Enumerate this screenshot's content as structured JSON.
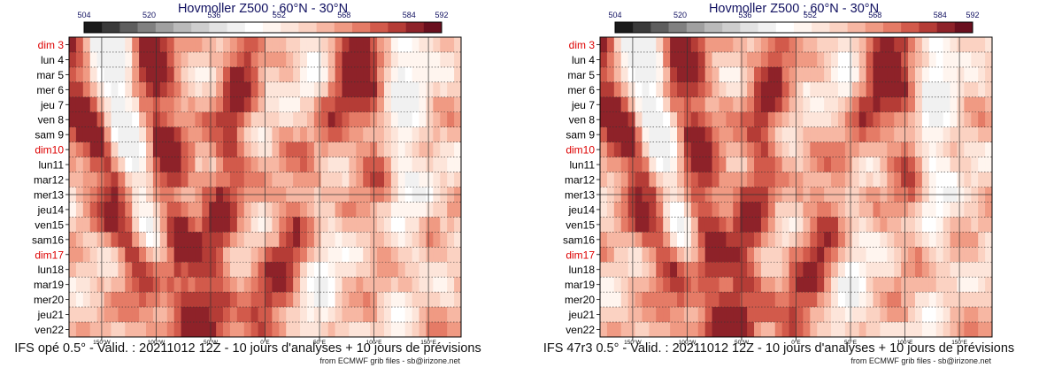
{
  "chart_data": [
    {
      "type": "heatmap",
      "title": "Hovmoller Z500 ; 60°N - 30°N",
      "caption": "IFS opé 0.5° - Valid. : 20211012 12Z - 10 jours d'analyses + 10 jours de prévisions",
      "credit": "from ECMWF grib files - sb@irizone.net",
      "colorbar": {
        "ticks": [
          504,
          520,
          536,
          552,
          568,
          584,
          592
        ],
        "colors": [
          "#1a1a1a",
          "#3a3a3a",
          "#5e5e5e",
          "#808080",
          "#a0a0a0",
          "#bababa",
          "#cecece",
          "#e2e2e2",
          "#f1f1f1",
          "#ffffff",
          "#fff5ef",
          "#fde5da",
          "#fbd2c2",
          "#f7b7a3",
          "#f09a83",
          "#e57b66",
          "#d25a4b",
          "#b53c36",
          "#8e2229",
          "#6a0f1e"
        ]
      },
      "x_labels": [
        "150°W",
        "100°W",
        "50°W",
        "0°E",
        "50°E",
        "100°E",
        "150°E"
      ],
      "x_values": [
        -150,
        -100,
        -50,
        0,
        50,
        100,
        150
      ],
      "xlim": [
        -180,
        180
      ],
      "y_labels": [
        {
          "text": "dim 3",
          "weekend": true
        },
        {
          "text": "lun 4",
          "weekend": false
        },
        {
          "text": "mar 5",
          "weekend": false
        },
        {
          "text": "mer 6",
          "weekend": false
        },
        {
          "text": "jeu 7",
          "weekend": false
        },
        {
          "text": "ven 8",
          "weekend": false
        },
        {
          "text": "sam 9",
          "weekend": false
        },
        {
          "text": "dim10",
          "weekend": true
        },
        {
          "text": "lun11",
          "weekend": false
        },
        {
          "text": "mar12",
          "weekend": false
        },
        {
          "text": "mer13",
          "weekend": false
        },
        {
          "text": "jeu14",
          "weekend": false
        },
        {
          "text": "ven15",
          "weekend": false
        },
        {
          "text": "sam16",
          "weekend": false
        },
        {
          "text": "dim17",
          "weekend": true
        },
        {
          "text": "lun18",
          "weekend": false
        },
        {
          "text": "mar19",
          "weekend": false
        },
        {
          "text": "mer20",
          "weekend": false
        },
        {
          "text": "jeu21",
          "weekend": false
        },
        {
          "text": "ven22",
          "weekend": false
        }
      ],
      "ridges": [
        [
          -140,
          -100,
          0.8
        ],
        [
          -90,
          -30,
          0.75
        ],
        [
          -30,
          35,
          0.9
        ],
        [
          40,
          80,
          0.6
        ],
        [
          110,
          -40,
          0.5
        ]
      ],
      "troughs": [
        [
          -115,
          -60,
          0.9
        ],
        [
          -20,
          40,
          0.5
        ],
        [
          50,
          0,
          0.35
        ],
        [
          125,
          0,
          0.6
        ]
      ],
      "base": 0.4,
      "seed": 3
    },
    {
      "type": "heatmap",
      "title": "Hovmoller Z500 ; 60°N - 30°N",
      "caption": "IFS 47r3 0.5° - Valid. : 20211012 12Z - 10 jours d'analyses + 10 jours de prévisions",
      "credit": "from ECMWF grib files - sb@irizone.net",
      "colorbar": {
        "ticks": [
          504,
          520,
          536,
          552,
          568,
          584,
          592
        ],
        "colors": [
          "#1a1a1a",
          "#3a3a3a",
          "#5e5e5e",
          "#808080",
          "#a0a0a0",
          "#bababa",
          "#cecece",
          "#e2e2e2",
          "#f1f1f1",
          "#ffffff",
          "#fff5ef",
          "#fde5da",
          "#fbd2c2",
          "#f7b7a3",
          "#f09a83",
          "#e57b66",
          "#d25a4b",
          "#b53c36",
          "#8e2229",
          "#6a0f1e"
        ]
      },
      "x_labels": [
        "150°W",
        "100°W",
        "50°W",
        "0°E",
        "50°E",
        "100°E",
        "150°E"
      ],
      "x_values": [
        -150,
        -100,
        -50,
        0,
        50,
        100,
        150
      ],
      "xlim": [
        -180,
        180
      ],
      "y_labels": [
        {
          "text": "dim 3",
          "weekend": true
        },
        {
          "text": "lun 4",
          "weekend": false
        },
        {
          "text": "mar 5",
          "weekend": false
        },
        {
          "text": "mer 6",
          "weekend": false
        },
        {
          "text": "jeu 7",
          "weekend": false
        },
        {
          "text": "ven 8",
          "weekend": false
        },
        {
          "text": "sam 9",
          "weekend": false
        },
        {
          "text": "dim10",
          "weekend": true
        },
        {
          "text": "lun11",
          "weekend": false
        },
        {
          "text": "mar12",
          "weekend": false
        },
        {
          "text": "mer13",
          "weekend": false
        },
        {
          "text": "jeu14",
          "weekend": false
        },
        {
          "text": "ven15",
          "weekend": false
        },
        {
          "text": "sam16",
          "weekend": false
        },
        {
          "text": "dim17",
          "weekend": true
        },
        {
          "text": "lun18",
          "weekend": false
        },
        {
          "text": "mar19",
          "weekend": false
        },
        {
          "text": "mer20",
          "weekend": false
        },
        {
          "text": "jeu21",
          "weekend": false
        },
        {
          "text": "ven22",
          "weekend": false
        }
      ],
      "ridges": [
        [
          -140,
          -100,
          0.8
        ],
        [
          -90,
          -30,
          0.75
        ],
        [
          -30,
          35,
          0.9
        ],
        [
          40,
          80,
          0.6
        ],
        [
          110,
          -40,
          0.5
        ]
      ],
      "troughs": [
        [
          -115,
          -60,
          0.9
        ],
        [
          -20,
          40,
          0.5
        ],
        [
          50,
          0,
          0.35
        ],
        [
          125,
          0,
          0.6
        ]
      ],
      "base": 0.4,
      "seed": 7
    }
  ]
}
